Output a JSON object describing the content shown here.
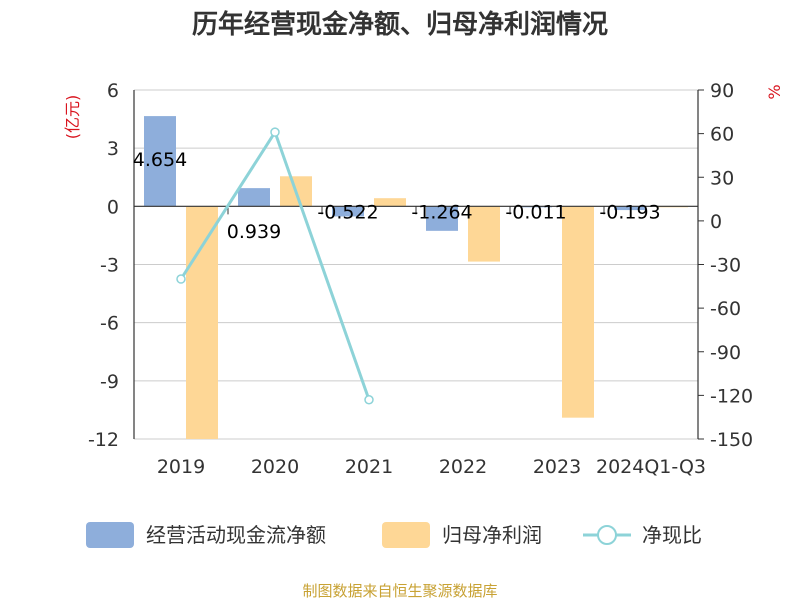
{
  "chart_data": {
    "type": "bar",
    "title": "历年经营现金净额、归母净利润情况",
    "categories": [
      "2019",
      "2020",
      "2021",
      "2022",
      "2023",
      "2024Q1-Q3"
    ],
    "left_axis": {
      "unit": "(亿元)",
      "ylim": [
        -12,
        6
      ],
      "ticks": [
        6,
        3,
        0,
        -3,
        -6,
        -9,
        -12
      ]
    },
    "right_axis": {
      "unit": "%",
      "ylim": [
        -150,
        90
      ],
      "ticks": [
        90,
        60,
        30,
        0,
        -30,
        -60,
        -90,
        -120,
        -150
      ]
    },
    "series": [
      {
        "name": "经营活动现金流净额",
        "type": "bar",
        "axis": "left",
        "color": "#8eaedb",
        "values": [
          4.654,
          0.939,
          -0.522,
          -1.264,
          -0.011,
          -0.193
        ],
        "labels": [
          "4.654",
          "0.939",
          "-0.522",
          "-1.264",
          "-0.011",
          "-0.193"
        ]
      },
      {
        "name": "归母净利润",
        "type": "bar",
        "axis": "left",
        "color": "#fed796",
        "values": [
          -12.0,
          1.55,
          0.42,
          -2.85,
          -10.9,
          -0.05
        ]
      },
      {
        "name": "净现比",
        "type": "line",
        "axis": "right",
        "color": "#8dd3d8",
        "values": [
          -40,
          61,
          -123,
          null,
          null,
          null
        ]
      }
    ],
    "grid": true,
    "legend_position": "bottom"
  },
  "footer": {
    "source": "制图数据来自恒生聚源数据库"
  }
}
